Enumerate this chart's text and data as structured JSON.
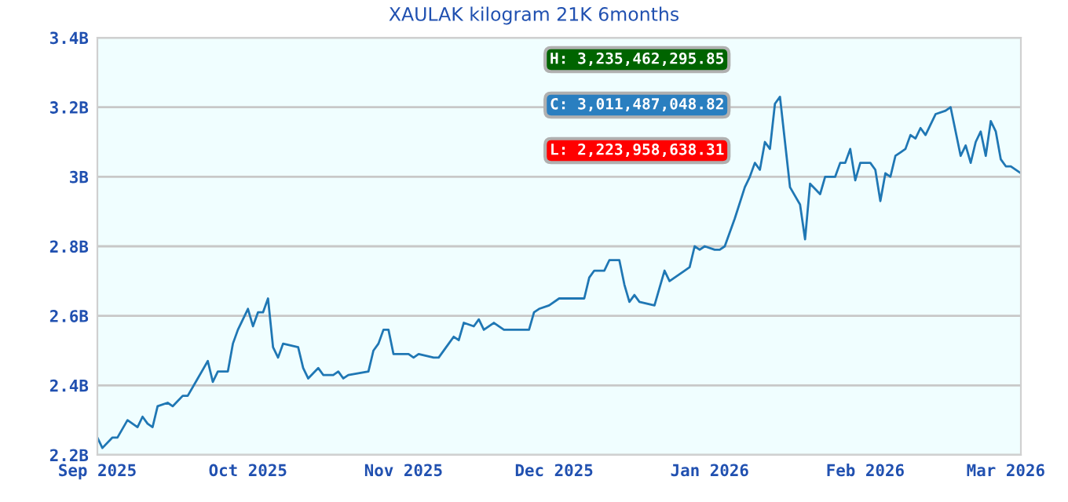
{
  "chart_data": {
    "type": "line",
    "title": "XAULAK kilogram 21K 6months",
    "x": [
      "2025-09-01",
      "2025-09-02",
      "2025-09-04",
      "2025-09-05",
      "2025-09-07",
      "2025-09-09",
      "2025-09-10",
      "2025-09-11",
      "2025-09-12",
      "2025-09-13",
      "2025-09-15",
      "2025-09-16",
      "2025-09-18",
      "2025-09-19",
      "2025-09-21",
      "2025-09-23",
      "2025-09-24",
      "2025-09-25",
      "2025-09-27",
      "2025-09-28",
      "2025-09-29",
      "2025-10-01",
      "2025-10-02",
      "2025-10-03",
      "2025-10-04",
      "2025-10-05",
      "2025-10-06",
      "2025-10-07",
      "2025-10-08",
      "2025-10-11",
      "2025-10-12",
      "2025-10-13",
      "2025-10-15",
      "2025-10-16",
      "2025-10-18",
      "2025-10-19",
      "2025-10-20",
      "2025-10-21",
      "2025-10-25",
      "2025-10-26",
      "2025-10-27",
      "2025-10-28",
      "2025-10-29",
      "2025-10-30",
      "2025-11-02",
      "2025-11-03",
      "2025-11-04",
      "2025-11-07",
      "2025-11-08",
      "2025-11-10",
      "2025-11-11",
      "2025-11-12",
      "2025-11-13",
      "2025-11-15",
      "2025-11-16",
      "2025-11-17",
      "2025-11-19",
      "2025-11-21",
      "2025-11-26",
      "2025-11-27",
      "2025-11-28",
      "2025-11-30",
      "2025-12-02",
      "2025-12-03",
      "2025-12-07",
      "2025-12-08",
      "2025-12-09",
      "2025-12-11",
      "2025-12-12",
      "2025-12-14",
      "2025-12-15",
      "2025-12-16",
      "2025-12-17",
      "2025-12-18",
      "2025-12-21",
      "2025-12-22",
      "2025-12-23",
      "2025-12-24",
      "2025-12-27",
      "2025-12-28",
      "2025-12-29",
      "2025-12-30",
      "2025-12-31",
      "2026-01-02",
      "2026-01-03",
      "2026-01-04",
      "2026-01-06",
      "2026-01-08",
      "2026-01-09",
      "2026-01-10",
      "2026-01-11",
      "2026-01-12",
      "2026-01-13",
      "2026-01-14",
      "2026-01-15",
      "2026-01-16",
      "2026-01-17",
      "2026-01-19",
      "2026-01-20",
      "2026-01-21",
      "2026-01-23",
      "2026-01-24",
      "2026-01-26",
      "2026-01-27",
      "2026-01-28",
      "2026-01-29",
      "2026-01-30",
      "2026-01-31",
      "2026-02-02",
      "2026-02-03",
      "2026-02-04",
      "2026-02-05",
      "2026-02-06",
      "2026-02-07",
      "2026-02-08",
      "2026-02-09",
      "2026-02-10",
      "2026-02-11",
      "2026-02-12",
      "2026-02-13",
      "2026-02-15",
      "2026-02-17",
      "2026-02-18",
      "2026-02-19",
      "2026-02-20",
      "2026-02-21",
      "2026-02-22",
      "2026-02-23",
      "2026-02-24",
      "2026-02-25",
      "2026-02-26",
      "2026-02-27",
      "2026-02-28",
      "2026-03-01",
      "2026-03-02",
      "2026-03-04"
    ],
    "series": [
      {
        "color": "#1f77b4",
        "values": [
          2.25,
          2.22,
          2.25,
          2.25,
          2.3,
          2.28,
          2.31,
          2.29,
          2.28,
          2.34,
          2.35,
          2.34,
          2.37,
          2.37,
          2.42,
          2.47,
          2.41,
          2.44,
          2.44,
          2.52,
          2.56,
          2.62,
          2.57,
          2.61,
          2.61,
          2.65,
          2.51,
          2.48,
          2.52,
          2.51,
          2.45,
          2.42,
          2.45,
          2.43,
          2.43,
          2.44,
          2.42,
          2.43,
          2.44,
          2.5,
          2.52,
          2.56,
          2.56,
          2.49,
          2.49,
          2.48,
          2.49,
          2.48,
          2.48,
          2.52,
          2.54,
          2.53,
          2.58,
          2.57,
          2.59,
          2.56,
          2.58,
          2.56,
          2.56,
          2.61,
          2.62,
          2.63,
          2.65,
          2.65,
          2.65,
          2.71,
          2.73,
          2.73,
          2.76,
          2.76,
          2.69,
          2.64,
          2.66,
          2.64,
          2.63,
          2.68,
          2.73,
          2.7,
          2.73,
          2.74,
          2.8,
          2.79,
          2.8,
          2.79,
          2.79,
          2.8,
          2.88,
          2.97,
          3.0,
          3.04,
          3.02,
          3.1,
          3.08,
          3.21,
          3.23,
          3.1,
          2.97,
          2.92,
          2.82,
          2.98,
          2.95,
          3.0,
          3.0,
          3.04,
          3.04,
          3.08,
          2.99,
          3.04,
          3.04,
          3.02,
          2.93,
          3.01,
          3.0,
          3.06,
          3.07,
          3.08,
          3.12,
          3.11,
          3.14,
          3.12,
          3.18,
          3.19,
          3.2,
          3.13,
          3.06,
          3.09,
          3.04,
          3.1,
          3.13,
          3.06,
          3.16,
          3.13,
          3.05,
          3.03,
          3.03,
          3.01
        ]
      }
    ],
    "xlim": [
      "2025-09-01",
      "2026-03-04"
    ],
    "xticks": [
      {
        "value": "2025-09-01",
        "label": "Sep 2025"
      },
      {
        "value": "2025-10-01",
        "label": "Oct 2025"
      },
      {
        "value": "2025-11-01",
        "label": "Nov 2025"
      },
      {
        "value": "2025-12-01",
        "label": "Dec 2025"
      },
      {
        "value": "2026-01-01",
        "label": "Jan 2026"
      },
      {
        "value": "2026-02-01",
        "label": "Feb 2026"
      },
      {
        "value": "2026-03-01",
        "label": "Mar 2026"
      }
    ],
    "ylim": [
      2.2,
      3.4
    ],
    "yticks": [
      {
        "value": 2.2,
        "label": "2.2B"
      },
      {
        "value": 2.4,
        "label": "2.4B"
      },
      {
        "value": 2.6,
        "label": "2.6B"
      },
      {
        "value": 2.8,
        "label": "2.8B"
      },
      {
        "value": 3.0,
        "label": "3B"
      },
      {
        "value": 3.2,
        "label": "3.2B"
      },
      {
        "value": 3.4,
        "label": "3.4B"
      }
    ],
    "grid": "y",
    "marker": "none",
    "line_style": "solid",
    "legend": false,
    "annotations": [
      "H: 3,235,462,295.85",
      "C: 3,011,487,048.82",
      "L: 2,223,958,638.31"
    ]
  }
}
